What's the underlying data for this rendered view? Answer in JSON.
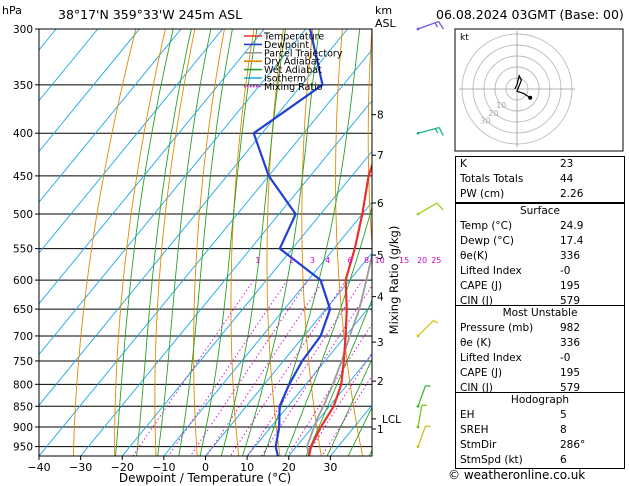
{
  "header": {
    "pressure_unit": "hPa",
    "location": "38°17'N  359°33'W  245m  ASL",
    "height_unit_km": "km",
    "height_unit_asl": "ASL",
    "datetime": "06.08.2024  03GMT  (Base: 00)"
  },
  "legend": [
    {
      "name": "Temperature",
      "color": "#e8312a",
      "style": "solid"
    },
    {
      "name": "Dewpoint",
      "color": "#1f3fd6",
      "style": "solid"
    },
    {
      "name": "Parcel Trajectory",
      "color": "#9a9a9a",
      "style": "solid"
    },
    {
      "name": "Dry Adiabat",
      "color": "#e28a00",
      "style": "solid"
    },
    {
      "name": "Wet Adiabat",
      "color": "#2aa02a",
      "style": "solid"
    },
    {
      "name": "Isotherm",
      "color": "#19a7e6",
      "style": "solid"
    },
    {
      "name": "Mixing Ratio",
      "color": "#d400d4",
      "style": "dotted"
    }
  ],
  "chart_data": {
    "type": "skew-t",
    "xlabel": "Dewpoint / Temperature (°C)",
    "y2label": "Mixing Ratio (g/kg)",
    "xlim": [
      -40,
      40
    ],
    "ylim_hpa": [
      975,
      300
    ],
    "x_ticks": [
      -40,
      -30,
      -20,
      -10,
      0,
      10,
      20,
      30
    ],
    "pressure_levels": [
      300,
      350,
      400,
      450,
      500,
      550,
      600,
      650,
      700,
      750,
      800,
      850,
      900,
      950
    ],
    "height_km_ticks": [
      {
        "label": "8",
        "p": 380
      },
      {
        "label": "7",
        "p": 425
      },
      {
        "label": "6",
        "p": 485
      },
      {
        "label": "5",
        "p": 560
      },
      {
        "label": "4",
        "p": 628
      },
      {
        "label": "3",
        "p": 712
      },
      {
        "label": "2",
        "p": 793
      },
      {
        "label": "1",
        "p": 905
      },
      {
        "label": "LCL",
        "p": 880
      }
    ],
    "mixing_ratio_labels": [
      "1",
      "2",
      "3",
      "4",
      "6",
      "8",
      "10",
      "15",
      "20",
      "25"
    ],
    "mixing_ratio_values": [
      1,
      2,
      3,
      4,
      6,
      8,
      10,
      15,
      20,
      25
    ],
    "mixing_ratio_label_p": 590,
    "temperature": [
      {
        "p": 300,
        "t": -35
      },
      {
        "p": 350,
        "t": -28
      },
      {
        "p": 400,
        "t": -21
      },
      {
        "p": 450,
        "t": -16
      },
      {
        "p": 500,
        "t": -10
      },
      {
        "p": 550,
        "t": -5
      },
      {
        "p": 600,
        "t": -1
      },
      {
        "p": 650,
        "t": 5
      },
      {
        "p": 700,
        "t": 10
      },
      {
        "p": 750,
        "t": 14.5
      },
      {
        "p": 800,
        "t": 18.5
      },
      {
        "p": 850,
        "t": 21
      },
      {
        "p": 900,
        "t": 22
      },
      {
        "p": 950,
        "t": 23.5
      },
      {
        "p": 975,
        "t": 24.9
      }
    ],
    "dewpoint": [
      {
        "p": 300,
        "t": -59
      },
      {
        "p": 350,
        "t": -45
      },
      {
        "p": 400,
        "t": -52
      },
      {
        "p": 450,
        "t": -40
      },
      {
        "p": 500,
        "t": -26
      },
      {
        "p": 550,
        "t": -23
      },
      {
        "p": 600,
        "t": -7
      },
      {
        "p": 650,
        "t": 1
      },
      {
        "p": 700,
        "t": 4
      },
      {
        "p": 750,
        "t": 4.5
      },
      {
        "p": 800,
        "t": 6
      },
      {
        "p": 850,
        "t": 8
      },
      {
        "p": 900,
        "t": 12
      },
      {
        "p": 950,
        "t": 15
      },
      {
        "p": 975,
        "t": 17.4
      }
    ],
    "parcel": [
      {
        "p": 300,
        "t": -29
      },
      {
        "p": 350,
        "t": -22
      },
      {
        "p": 400,
        "t": -15
      },
      {
        "p": 450,
        "t": -10
      },
      {
        "p": 500,
        "t": -5
      },
      {
        "p": 550,
        "t": -0.5
      },
      {
        "p": 600,
        "t": 4
      },
      {
        "p": 650,
        "t": 8
      },
      {
        "p": 700,
        "t": 11
      },
      {
        "p": 750,
        "t": 14
      },
      {
        "p": 800,
        "t": 16.5
      },
      {
        "p": 850,
        "t": 18.5
      },
      {
        "p": 880,
        "t": 19.5
      },
      {
        "p": 950,
        "t": 22.5
      },
      {
        "p": 975,
        "t": 24.9
      }
    ],
    "wind_barbs": [
      {
        "p": 300,
        "dir": 250,
        "kt": 15,
        "color": "#6c5ce7"
      },
      {
        "p": 400,
        "dir": 255,
        "kt": 15,
        "color": "#16b38a"
      },
      {
        "p": 500,
        "dir": 240,
        "kt": 10,
        "color": "#9ad21a"
      },
      {
        "p": 700,
        "dir": 225,
        "kt": 5,
        "color": "#d6c31a"
      },
      {
        "p": 850,
        "dir": 200,
        "kt": 5,
        "color": "#3cb83c"
      },
      {
        "p": 900,
        "dir": 190,
        "kt": 5,
        "color": "#7fc61a"
      },
      {
        "p": 950,
        "dir": 200,
        "kt": 5,
        "color": "#c5c21a"
      }
    ],
    "hodograph": {
      "unit_label": "kt",
      "ring_labels": [
        "10",
        "20",
        "30"
      ],
      "points": [
        {
          "u": -1,
          "v": 0
        },
        {
          "u": 0,
          "v": 2
        },
        {
          "u": 1,
          "v": 6
        },
        {
          "u": 2,
          "v": 4
        },
        {
          "u": 0,
          "v": -1
        },
        {
          "u": 3,
          "v": -2
        },
        {
          "u": 6,
          "v": -4
        }
      ]
    }
  },
  "indices": [
    {
      "label": "K",
      "value": "23"
    },
    {
      "label": "Totals Totals",
      "value": "44"
    },
    {
      "label": "PW (cm)",
      "value": "2.26"
    }
  ],
  "surface": {
    "title": "Surface",
    "rows": [
      {
        "label": "Temp (°C)",
        "value": "24.9"
      },
      {
        "label": "Dewp (°C)",
        "value": "17.4"
      },
      {
        "label": "θe(K)",
        "value": "336"
      },
      {
        "label": "Lifted Index",
        "value": "-0"
      },
      {
        "label": "CAPE (J)",
        "value": "195"
      },
      {
        "label": "CIN (J)",
        "value": "579"
      }
    ]
  },
  "most_unstable": {
    "title": "Most Unstable",
    "rows": [
      {
        "label": "Pressure (mb)",
        "value": "982"
      },
      {
        "label": "θe (K)",
        "value": "336"
      },
      {
        "label": "Lifted Index",
        "value": "-0"
      },
      {
        "label": "CAPE (J)",
        "value": "195"
      },
      {
        "label": "CIN (J)",
        "value": "579"
      }
    ]
  },
  "hodograph_table": {
    "title": "Hodograph",
    "rows": [
      {
        "label": "EH",
        "value": "5"
      },
      {
        "label": "SREH",
        "value": "8"
      },
      {
        "label": "StmDir",
        "value": "286°"
      },
      {
        "label": "StmSpd (kt)",
        "value": "6"
      }
    ]
  },
  "copyright": "© weatheronline.co.uk"
}
